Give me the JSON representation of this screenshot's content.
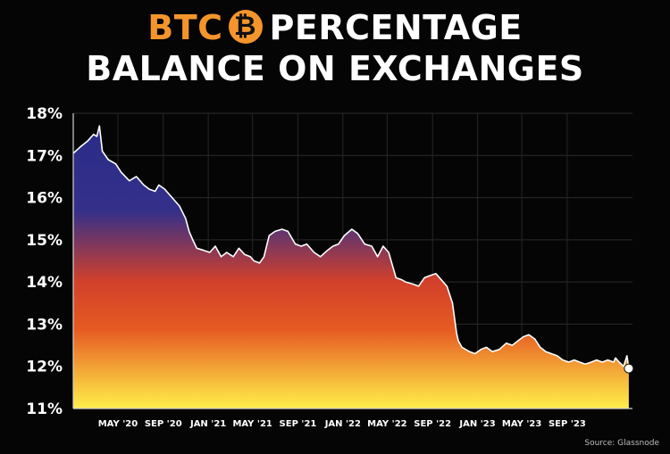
{
  "title": {
    "brand": "BTC",
    "icon": "bitcoin-icon",
    "line1_rest": "PERCENTAGE",
    "line2": "BALANCE ON EXCHANGES"
  },
  "source": "Source: Glassnode",
  "colors": {
    "brand": "#f4952c",
    "background": "#050505",
    "gradient_top": "#2a2c88",
    "gradient_mid": "#d2402b",
    "gradient_bottom": "#fff04a"
  },
  "chart_data": {
    "type": "area",
    "title": "BTC PERCENTAGE BALANCE ON EXCHANGES",
    "xlabel": "",
    "ylabel": "",
    "ylim": [
      11,
      18
    ],
    "xlim": [
      "2020-01-01",
      "2024-02-25"
    ],
    "yticks": [
      "11%",
      "12%",
      "13%",
      "14%",
      "15%",
      "16%",
      "17%",
      "18%"
    ],
    "yticks_values": [
      11,
      12,
      13,
      14,
      15,
      16,
      17,
      18
    ],
    "xticks": [
      "MAY '20",
      "SEP '20",
      "JAN '21",
      "MAY '21",
      "SEP '21",
      "JAN '22",
      "MAY '22",
      "SEP '22",
      "JAN '23",
      "MAY '23",
      "SEP '23"
    ],
    "xticks_dates": [
      "2020-05-01",
      "2020-09-01",
      "2021-01-01",
      "2021-05-01",
      "2021-09-01",
      "2022-01-01",
      "2022-05-01",
      "2022-09-01",
      "2023-01-01",
      "2023-05-01",
      "2023-09-01"
    ],
    "grid": true,
    "series": [
      {
        "x": [
          "2020-01-01",
          "2020-01-20",
          "2020-02-10",
          "2020-02-25",
          "2020-03-05",
          "2020-03-12",
          "2020-03-20",
          "2020-04-05",
          "2020-04-25",
          "2020-05-10",
          "2020-06-01",
          "2020-06-20",
          "2020-07-10",
          "2020-07-25",
          "2020-08-10",
          "2020-08-20",
          "2020-09-05",
          "2020-09-25",
          "2020-10-15",
          "2020-11-01",
          "2020-11-10",
          "2020-11-20",
          "2020-12-01",
          "2020-12-20",
          "2021-01-05",
          "2021-01-20",
          "2021-02-05",
          "2021-02-20",
          "2021-03-10",
          "2021-03-25",
          "2021-04-10",
          "2021-04-25",
          "2021-05-05",
          "2021-05-20",
          "2021-06-01",
          "2021-06-15",
          "2021-07-01",
          "2021-07-20",
          "2021-08-05",
          "2021-08-25",
          "2021-09-10",
          "2021-09-25",
          "2021-10-15",
          "2021-11-01",
          "2021-11-20",
          "2021-12-05",
          "2021-12-20",
          "2022-01-05",
          "2022-01-25",
          "2022-02-10",
          "2022-03-01",
          "2022-03-20",
          "2022-04-05",
          "2022-04-20",
          "2022-05-05",
          "2022-05-15",
          "2022-05-25",
          "2022-06-10",
          "2022-06-20",
          "2022-07-10",
          "2022-07-25",
          "2022-08-10",
          "2022-08-25",
          "2022-09-10",
          "2022-09-25",
          "2022-10-10",
          "2022-10-25",
          "2022-11-05",
          "2022-11-10",
          "2022-11-20",
          "2022-12-10",
          "2022-12-25",
          "2023-01-10",
          "2023-01-25",
          "2023-02-10",
          "2023-03-01",
          "2023-03-20",
          "2023-04-05",
          "2023-04-20",
          "2023-05-05",
          "2023-05-20",
          "2023-06-05",
          "2023-06-20",
          "2023-07-05",
          "2023-07-20",
          "2023-08-05",
          "2023-08-20",
          "2023-09-05",
          "2023-09-20",
          "2023-10-05",
          "2023-10-20",
          "2023-11-05",
          "2023-11-20",
          "2023-12-05",
          "2023-12-20",
          "2024-01-05",
          "2024-01-10",
          "2024-01-20",
          "2024-02-01",
          "2024-02-10",
          "2024-02-15"
        ],
        "values": [
          17.05,
          17.2,
          17.35,
          17.5,
          17.45,
          17.7,
          17.1,
          16.9,
          16.8,
          16.6,
          16.4,
          16.5,
          16.3,
          16.2,
          16.15,
          16.3,
          16.2,
          16.0,
          15.8,
          15.5,
          15.2,
          15.0,
          14.8,
          14.75,
          14.7,
          14.85,
          14.6,
          14.7,
          14.6,
          14.8,
          14.65,
          14.6,
          14.5,
          14.45,
          14.6,
          15.1,
          15.2,
          15.25,
          15.2,
          14.9,
          14.85,
          14.9,
          14.7,
          14.6,
          14.75,
          14.85,
          14.9,
          15.1,
          15.25,
          15.15,
          14.9,
          14.85,
          14.6,
          14.85,
          14.7,
          14.4,
          14.1,
          14.05,
          14.0,
          13.95,
          13.9,
          14.1,
          14.15,
          14.2,
          14.05,
          13.9,
          13.5,
          12.8,
          12.6,
          12.45,
          12.35,
          12.3,
          12.4,
          12.45,
          12.35,
          12.4,
          12.55,
          12.5,
          12.6,
          12.7,
          12.75,
          12.65,
          12.45,
          12.35,
          12.3,
          12.25,
          12.15,
          12.1,
          12.15,
          12.1,
          12.05,
          12.1,
          12.15,
          12.1,
          12.15,
          12.1,
          12.2,
          12.1,
          12.0,
          12.25,
          11.95
        ]
      }
    ],
    "end_marker": true
  }
}
